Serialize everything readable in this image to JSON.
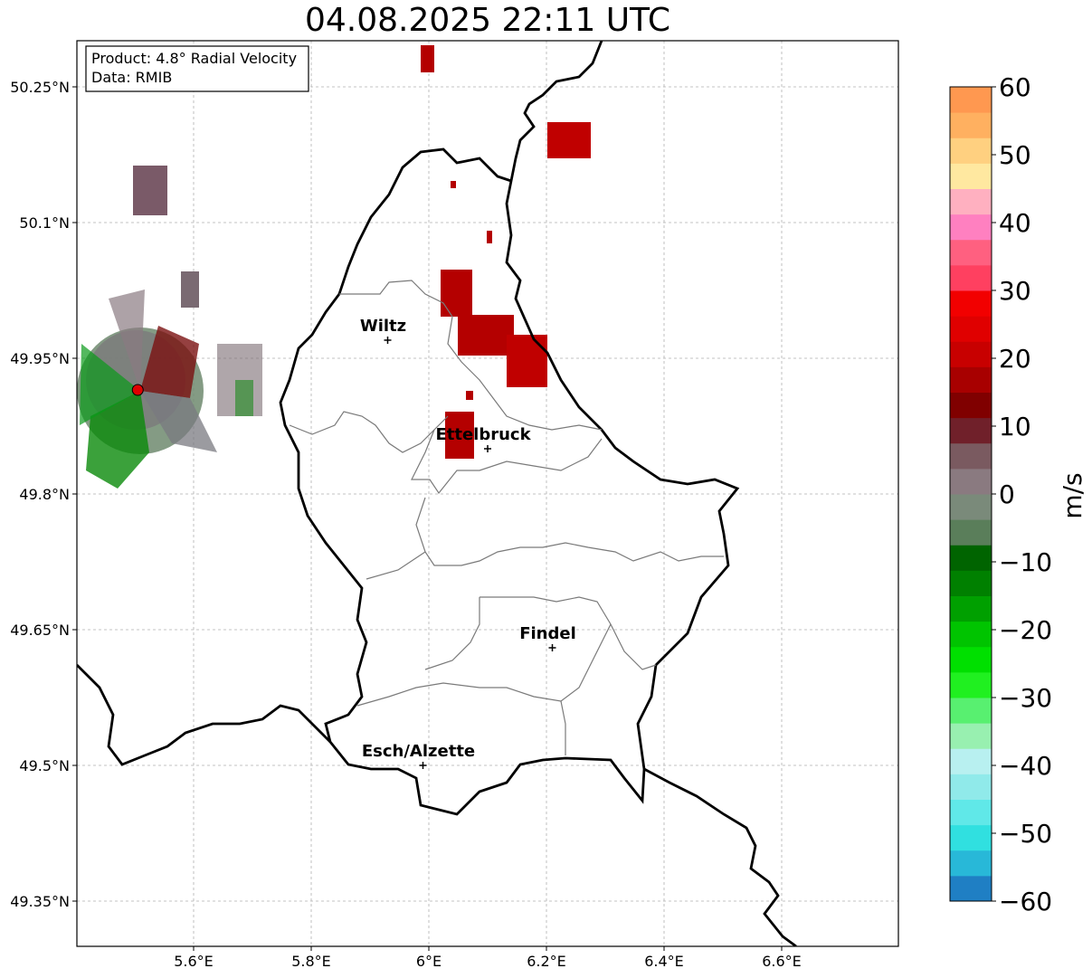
{
  "title": "04.08.2025 22:11 UTC",
  "info_box": {
    "product": "Product: 4.8° Radial Velocity",
    "source": "Data: RMIB"
  },
  "map": {
    "lon_range": [
      5.4,
      6.8
    ],
    "lat_range": [
      49.29,
      50.3
    ],
    "lon_ticks": [
      "5.6°E",
      "5.8°E",
      "6°E",
      "6.2°E",
      "6.4°E",
      "6.6°E"
    ],
    "lat_ticks": [
      "50.25°N",
      "50.1°N",
      "49.95°N",
      "49.8°N",
      "49.65°N",
      "49.5°N",
      "49.35°N"
    ],
    "gridlines": true,
    "cities": [
      {
        "name": "Wiltz",
        "lon": 5.93,
        "lat": 49.97
      },
      {
        "name": "Ettelbruck",
        "lon": 6.1,
        "lat": 49.85
      },
      {
        "name": "Findel",
        "lon": 6.21,
        "lat": 49.63
      },
      {
        "name": "Esch/Alzette",
        "lon": 5.99,
        "lat": 49.5
      }
    ],
    "radar_site": {
      "lon": 5.505,
      "lat": 49.915,
      "color": "#e00000"
    }
  },
  "colorbar": {
    "label": "m/s",
    "min": -60,
    "max": 60,
    "ticks": [
      "60",
      "50",
      "40",
      "30",
      "20",
      "10",
      "0",
      "−10",
      "−20",
      "−30",
      "−40",
      "−50",
      "−60"
    ],
    "colors": [
      "#1f7fc4",
      "#28b8d8",
      "#30e0e0",
      "#60e8e8",
      "#90eaea",
      "#b8f0f0",
      "#98f0b0",
      "#58f070",
      "#20f020",
      "#00e000",
      "#00c400",
      "#00a000",
      "#008000",
      "#006400",
      "#5a7e5a",
      "#7a8a7a",
      "#8a7a80",
      "#7a5a60",
      "#70202a",
      "#800000",
      "#a80000",
      "#c80000",
      "#e00000",
      "#f20000",
      "#ff4060",
      "#ff6080",
      "#ff80c0",
      "#ffb0c0",
      "#ffe8a0",
      "#ffd080",
      "#ffb060",
      "#ff9850"
    ]
  },
  "colors": {
    "positive_echo": "#b40000",
    "near_zero_echo": "#7a6a72",
    "negative_echo": "#1a8a1a"
  }
}
